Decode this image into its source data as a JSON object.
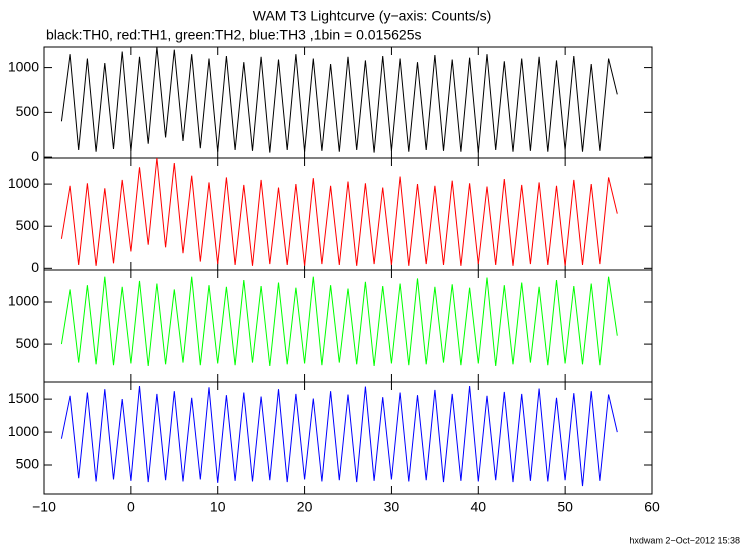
{
  "title": "WAM T3 Lightcurve (y−axis: Counts/s)",
  "subtitle": "black:TH0, red:TH1, green:TH2, blue:TH3 ,1bin = 0.015625s",
  "footer": "hxdwam  2−Oct−2012 15:38",
  "chart_data": [
    {
      "type": "line",
      "xlim": [
        -10,
        60
      ],
      "ylim": [
        -10,
        1230
      ],
      "yticks": [
        0,
        500,
        1000
      ],
      "x": [
        -8,
        -7,
        -6,
        -5,
        -4,
        -3,
        -2,
        -1,
        0,
        1,
        2,
        3,
        4,
        5,
        6,
        7,
        8,
        9,
        10,
        11,
        12,
        13,
        14,
        15,
        16,
        17,
        18,
        19,
        20,
        21,
        22,
        23,
        24,
        25,
        26,
        27,
        28,
        29,
        30,
        31,
        32,
        33,
        34,
        35,
        36,
        37,
        38,
        39,
        40,
        41,
        42,
        43,
        44,
        45,
        46,
        47,
        48,
        49,
        50,
        51,
        52,
        53,
        54,
        55,
        56
      ],
      "series": [
        {
          "color": "#000000",
          "values": [
            400,
            1150,
            80,
            1100,
            60,
            1050,
            90,
            1180,
            70,
            1120,
            150,
            1230,
            220,
            1200,
            180,
            1150,
            100,
            1100,
            60,
            1130,
            80,
            1060,
            70,
            1120,
            50,
            1090,
            80,
            1150,
            60,
            1100,
            70,
            1040,
            60,
            1120,
            80,
            1080,
            50,
            1130,
            70,
            1100,
            60,
            1060,
            80,
            1140,
            70,
            1090,
            60,
            1110,
            50,
            1150,
            80,
            1070,
            60,
            1100,
            70,
            1120,
            60,
            1080,
            80,
            1130,
            60,
            1040,
            70,
            1100,
            700
          ]
        }
      ]
    },
    {
      "type": "line",
      "xlim": [
        -10,
        60
      ],
      "ylim": [
        -20,
        1310
      ],
      "yticks": [
        0,
        500,
        1000
      ],
      "x": [
        -8,
        -7,
        -6,
        -5,
        -4,
        -3,
        -2,
        -1,
        0,
        1,
        2,
        3,
        4,
        5,
        6,
        7,
        8,
        9,
        10,
        11,
        12,
        13,
        14,
        15,
        16,
        17,
        18,
        19,
        20,
        21,
        22,
        23,
        24,
        25,
        26,
        27,
        28,
        29,
        30,
        31,
        32,
        33,
        34,
        35,
        36,
        37,
        38,
        39,
        40,
        41,
        42,
        43,
        44,
        45,
        46,
        47,
        48,
        49,
        50,
        51,
        52,
        53,
        54,
        55,
        56
      ],
      "series": [
        {
          "color": "#ff0000",
          "values": [
            350,
            980,
            40,
            1010,
            30,
            950,
            60,
            1050,
            200,
            1200,
            280,
            1310,
            250,
            1250,
            180,
            1100,
            80,
            1020,
            50,
            1080,
            40,
            990,
            30,
            1050,
            50,
            960,
            40,
            1000,
            30,
            1070,
            50,
            980,
            40,
            1030,
            30,
            1010,
            50,
            960,
            40,
            1090,
            30,
            1000,
            50,
            980,
            40,
            1040,
            30,
            1010,
            50,
            970,
            40,
            1060,
            30,
            990,
            50,
            1020,
            40,
            980,
            30,
            1050,
            40,
            1000,
            50,
            1080,
            650
          ]
        }
      ]
    },
    {
      "type": "line",
      "xlim": [
        -10,
        60
      ],
      "ylim": [
        50,
        1380
      ],
      "yticks": [
        500,
        1000
      ],
      "x": [
        -8,
        -7,
        -6,
        -5,
        -4,
        -3,
        -2,
        -1,
        0,
        1,
        2,
        3,
        4,
        5,
        6,
        7,
        8,
        9,
        10,
        11,
        12,
        13,
        14,
        15,
        16,
        17,
        18,
        19,
        20,
        21,
        22,
        23,
        24,
        25,
        26,
        27,
        28,
        29,
        30,
        31,
        32,
        33,
        34,
        35,
        36,
        37,
        38,
        39,
        40,
        41,
        42,
        43,
        44,
        45,
        46,
        47,
        48,
        49,
        50,
        51,
        52,
        53,
        54,
        55,
        56
      ],
      "series": [
        {
          "color": "#00ff00",
          "values": [
            500,
            1150,
            280,
            1200,
            260,
            1300,
            250,
            1180,
            270,
            1250,
            240,
            1220,
            260,
            1150,
            280,
            1300,
            250,
            1200,
            270,
            1180,
            250,
            1260,
            280,
            1190,
            240,
            1230,
            260,
            1170,
            270,
            1300,
            250,
            1200,
            280,
            1160,
            260,
            1240,
            240,
            1190,
            270,
            1220,
            250,
            1280,
            260,
            1180,
            280,
            1210,
            250,
            1170,
            270,
            1290,
            240,
            1200,
            260,
            1230,
            280,
            1180,
            250,
            1260,
            270,
            1190,
            260,
            1220,
            250,
            1300,
            600
          ]
        }
      ]
    },
    {
      "type": "line",
      "xlim": [
        -10,
        60
      ],
      "ylim": [
        60,
        1760
      ],
      "yticks": [
        500,
        1000,
        1500
      ],
      "xticks": [
        {
          "value": -10,
          "label": "−10"
        },
        0,
        10,
        20,
        30,
        40,
        50,
        60
      ],
      "x": [
        -8,
        -7,
        -6,
        -5,
        -4,
        -3,
        -2,
        -1,
        0,
        1,
        2,
        3,
        4,
        5,
        6,
        7,
        8,
        9,
        10,
        11,
        12,
        13,
        14,
        15,
        16,
        17,
        18,
        19,
        20,
        21,
        22,
        23,
        24,
        25,
        26,
        27,
        28,
        29,
        30,
        31,
        32,
        33,
        34,
        35,
        36,
        37,
        38,
        39,
        40,
        41,
        42,
        43,
        44,
        45,
        46,
        47,
        48,
        49,
        50,
        51,
        52,
        53,
        54,
        55,
        56
      ],
      "series": [
        {
          "color": "#0000ff",
          "values": [
            900,
            1550,
            300,
            1600,
            250,
            1650,
            280,
            1500,
            260,
            1700,
            240,
            1580,
            270,
            1620,
            250,
            1520,
            280,
            1680,
            230,
            1560,
            260,
            1600,
            250,
            1540,
            270,
            1650,
            240,
            1580,
            280,
            1510,
            250,
            1620,
            270,
            1570,
            240,
            1690,
            260,
            1530,
            280,
            1600,
            250,
            1560,
            270,
            1640,
            240,
            1580,
            260,
            1700,
            250,
            1550,
            270,
            1610,
            240,
            1580,
            260,
            1660,
            250,
            1520,
            270,
            1590,
            180,
            1620,
            260,
            1570,
            1000
          ]
        }
      ]
    }
  ]
}
